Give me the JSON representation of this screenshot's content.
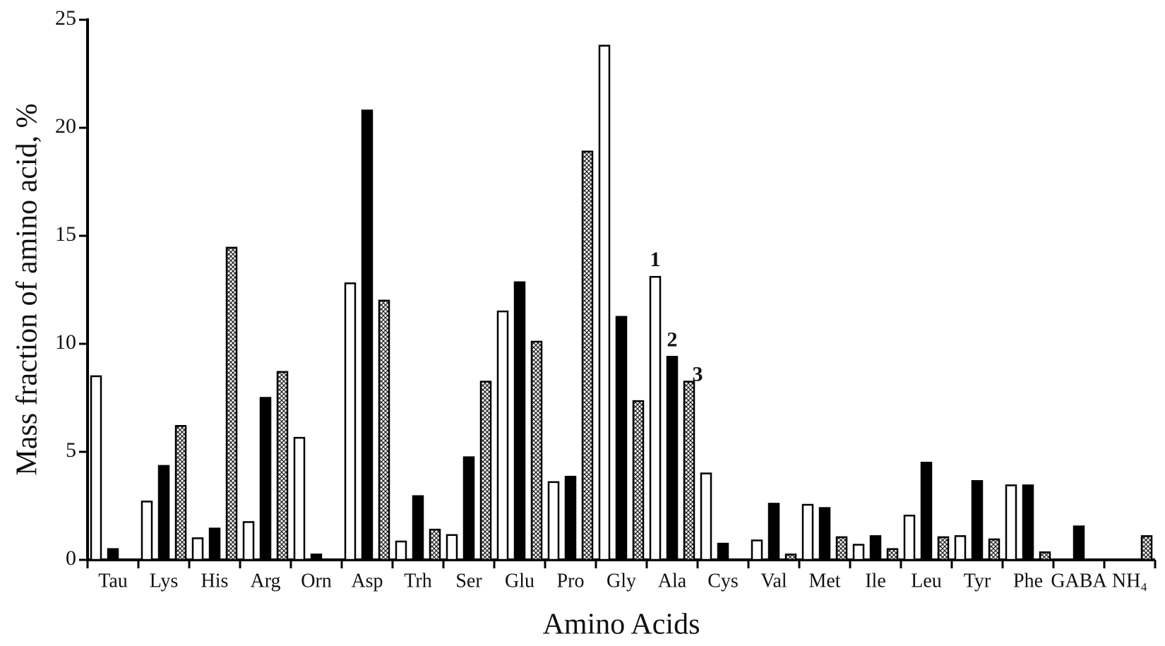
{
  "chart_data": {
    "type": "bar",
    "x_label": "Amino Acids",
    "y_label": "Mass fraction of amino acid, %",
    "categories": [
      "Tau",
      "Lys",
      "His",
      "Arg",
      "Orn",
      "Asp",
      "Trh",
      "Ser",
      "Glu",
      "Pro",
      "Gly",
      "Ala",
      "Cys",
      "Val",
      "Met",
      "Ile",
      "Leu",
      "Tyr",
      "Phe",
      "GABA",
      "NH₄"
    ],
    "series": [
      {
        "name": "1",
        "color": "#ffffff",
        "hatch": false,
        "values": [
          8.5,
          2.7,
          1.0,
          1.75,
          5.65,
          12.8,
          0.85,
          1.15,
          11.5,
          3.6,
          23.8,
          13.1,
          4.0,
          0.9,
          2.55,
          0.7,
          2.05,
          1.1,
          3.45,
          null,
          null
        ]
      },
      {
        "name": "2",
        "color": "#000000",
        "hatch": false,
        "values": [
          0.5,
          4.35,
          1.45,
          7.5,
          0.25,
          20.8,
          2.95,
          4.75,
          12.85,
          3.85,
          11.25,
          9.4,
          0.75,
          2.6,
          2.4,
          1.1,
          4.5,
          3.65,
          3.45,
          1.55,
          null
        ]
      },
      {
        "name": "3",
        "color": "#ffffff",
        "hatch": true,
        "values": [
          null,
          6.2,
          14.45,
          8.7,
          null,
          12.0,
          1.4,
          8.25,
          10.1,
          18.9,
          7.35,
          8.25,
          null,
          0.25,
          1.05,
          0.5,
          1.05,
          0.95,
          0.35,
          null,
          1.1
        ]
      }
    ],
    "ylim": [
      0,
      25
    ],
    "yticks": [
      0,
      5,
      10,
      15,
      20,
      25
    ]
  }
}
